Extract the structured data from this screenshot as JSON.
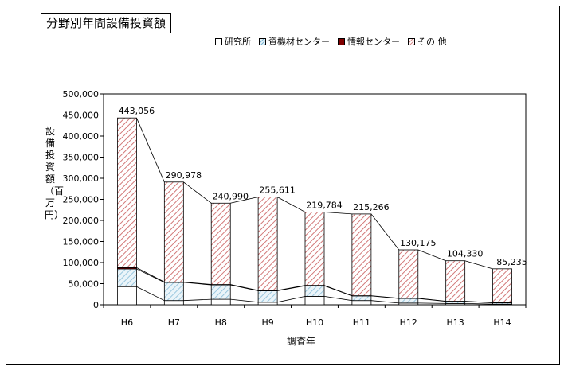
{
  "chart_data": {
    "type": "bar",
    "title": "分野別年間設備投資額",
    "xlabel": "調査年",
    "ylabel": "設備投資額（百万円）",
    "categories": [
      "H6",
      "H7",
      "H8",
      "H9",
      "H10",
      "H11",
      "H12",
      "H13",
      "H14"
    ],
    "series": [
      {
        "name": "研究所",
        "values": [
          43000,
          10000,
          13000,
          6000,
          20000,
          10000,
          4000,
          3000,
          1500
        ],
        "color": "#ffffff",
        "pattern": "none"
      },
      {
        "name": "資機材センター",
        "values": [
          42000,
          43000,
          34000,
          27000,
          25000,
          11000,
          11000,
          5000,
          3000
        ],
        "color": "#cfe6f0",
        "pattern": "hatch-blue"
      },
      {
        "name": "情報センター",
        "values": [
          3000,
          1000,
          1000,
          1000,
          1000,
          500,
          500,
          500,
          500
        ],
        "color": "#800000",
        "pattern": "solid"
      },
      {
        "name": "その 他",
        "values": [
          355056,
          236978,
          192990,
          221611,
          173784,
          193766,
          114675,
          95830,
          80235
        ],
        "color": "#ffffff",
        "pattern": "hatch-red"
      }
    ],
    "totals": [
      443056,
      290978,
      240990,
      255611,
      219784,
      215266,
      130175,
      104330,
      85235
    ],
    "total_labels": [
      "443,056",
      "290,978",
      "240,990",
      "255,611",
      "219,784",
      "215,266",
      "130,175",
      "104,330",
      "85,235"
    ],
    "ylim": [
      0,
      500000
    ],
    "yticks": [
      "0",
      "50,000",
      "100,000",
      "150,000",
      "200,000",
      "250,000",
      "300,000",
      "350,000",
      "400,000",
      "450,000",
      "500,000"
    ],
    "stacked": true,
    "series_lines": true,
    "grid": false,
    "legend": "top"
  }
}
